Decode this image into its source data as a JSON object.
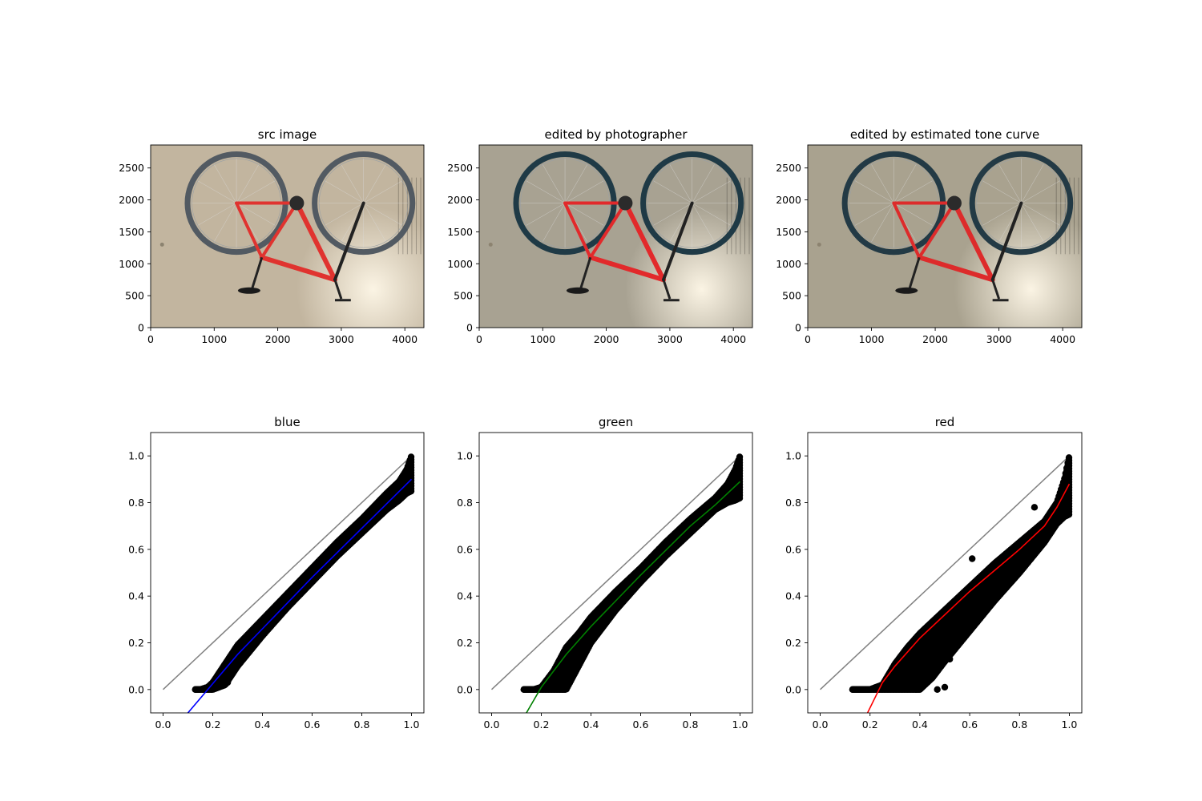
{
  "chart_data": [
    {
      "type": "image",
      "title": "src image",
      "xlim": [
        0,
        4300
      ],
      "ylim": [
        2860,
        0
      ],
      "xticks": [
        0,
        1000,
        2000,
        3000,
        4000
      ],
      "yticks": [
        0,
        500,
        1000,
        1500,
        2000,
        2500
      ],
      "photo": {
        "tint": "src",
        "wall": "#c2b59f",
        "frame": "#e0332f",
        "tire": "#525a62",
        "floor": "#bdb6a5"
      }
    },
    {
      "type": "image",
      "title": "edited by photographer",
      "xlim": [
        0,
        4300
      ],
      "ylim": [
        2860,
        0
      ],
      "xticks": [
        0,
        1000,
        2000,
        3000,
        4000
      ],
      "yticks": [
        0,
        500,
        1000,
        1500,
        2000,
        2500
      ],
      "photo": {
        "tint": "photographer",
        "wall": "#a8a292",
        "frame": "#e2292b",
        "tire": "#1f3a46",
        "floor": "#b0ada3"
      }
    },
    {
      "type": "image",
      "title": "edited by estimated tone curve",
      "xlim": [
        0,
        4300
      ],
      "ylim": [
        2860,
        0
      ],
      "xticks": [
        0,
        1000,
        2000,
        3000,
        4000
      ],
      "yticks": [
        0,
        500,
        1000,
        1500,
        2000,
        2500
      ],
      "photo": {
        "tint": "estimated",
        "wall": "#a9a28f",
        "frame": "#dd2b2b",
        "tire": "#233a45",
        "floor": "#b3ad9f"
      }
    },
    {
      "type": "scatter",
      "title": "blue",
      "xlim": [
        -0.05,
        1.05
      ],
      "ylim": [
        -0.1,
        1.1
      ],
      "xticks": [
        0.0,
        0.2,
        0.4,
        0.6,
        0.8,
        1.0
      ],
      "yticks": [
        0.0,
        0.2,
        0.4,
        0.6,
        0.8,
        1.0
      ],
      "identity_color": "#808080",
      "curve_color": "#0000ff",
      "curve": {
        "x": [
          0.1,
          0.2,
          0.3,
          0.4,
          0.5,
          0.6,
          0.7,
          0.8,
          0.9,
          1.0
        ],
        "y": [
          -0.1,
          0.025,
          0.15,
          0.26,
          0.37,
          0.48,
          0.585,
          0.69,
          0.795,
          0.9
        ]
      },
      "scatter": {
        "band_x": [
          0.13,
          0.15,
          0.18,
          0.2,
          0.25,
          0.3,
          0.4,
          0.5,
          0.6,
          0.7,
          0.8,
          0.9,
          0.95,
          0.98,
          1.0
        ],
        "band_lo": [
          0.0,
          0.0,
          0.0,
          0.0,
          0.02,
          0.1,
          0.23,
          0.35,
          0.46,
          0.57,
          0.67,
          0.77,
          0.81,
          0.84,
          0.85
        ],
        "band_hi": [
          0.0,
          0.0,
          0.01,
          0.03,
          0.11,
          0.19,
          0.3,
          0.41,
          0.52,
          0.63,
          0.73,
          0.84,
          0.89,
          0.94,
          1.0
        ],
        "outliers": [
          [
            0.24,
            0.02
          ],
          [
            0.26,
            0.03
          ]
        ]
      }
    },
    {
      "type": "scatter",
      "title": "green",
      "xlim": [
        -0.05,
        1.05
      ],
      "ylim": [
        -0.1,
        1.1
      ],
      "xticks": [
        0.0,
        0.2,
        0.4,
        0.6,
        0.8,
        1.0
      ],
      "yticks": [
        0.0,
        0.2,
        0.4,
        0.6,
        0.8,
        1.0
      ],
      "identity_color": "#808080",
      "curve_color": "#008000",
      "curve": {
        "x": [
          0.14,
          0.2,
          0.3,
          0.4,
          0.5,
          0.6,
          0.7,
          0.8,
          0.9,
          1.0
        ],
        "y": [
          -0.1,
          0.01,
          0.15,
          0.27,
          0.38,
          0.49,
          0.595,
          0.7,
          0.79,
          0.89
        ]
      },
      "scatter": {
        "band_x": [
          0.13,
          0.17,
          0.2,
          0.25,
          0.3,
          0.35,
          0.4,
          0.5,
          0.6,
          0.7,
          0.8,
          0.9,
          0.95,
          0.98,
          1.0
        ],
        "band_lo": [
          0.0,
          0.0,
          0.0,
          0.0,
          0.0,
          0.1,
          0.2,
          0.34,
          0.46,
          0.57,
          0.67,
          0.77,
          0.8,
          0.81,
          0.82
        ],
        "band_hi": [
          0.0,
          0.0,
          0.01,
          0.08,
          0.18,
          0.24,
          0.31,
          0.42,
          0.52,
          0.63,
          0.73,
          0.82,
          0.88,
          0.94,
          1.0
        ],
        "outliers": [
          [
            0.92,
            0.84
          ],
          [
            0.87,
            0.78
          ],
          [
            0.83,
            0.74
          ]
        ]
      }
    },
    {
      "type": "scatter",
      "title": "red",
      "xlim": [
        -0.05,
        1.05
      ],
      "ylim": [
        -0.1,
        1.1
      ],
      "xticks": [
        0.0,
        0.2,
        0.4,
        0.6,
        0.8,
        1.0
      ],
      "yticks": [
        0.0,
        0.2,
        0.4,
        0.6,
        0.8,
        1.0
      ],
      "identity_color": "#808080",
      "curve_color": "#ff0000",
      "curve": {
        "x": [
          0.19,
          0.25,
          0.3,
          0.4,
          0.5,
          0.6,
          0.7,
          0.8,
          0.9,
          0.95,
          1.0
        ],
        "y": [
          -0.1,
          0.03,
          0.1,
          0.22,
          0.32,
          0.42,
          0.51,
          0.6,
          0.7,
          0.78,
          0.88
        ]
      },
      "scatter": {
        "band_x": [
          0.13,
          0.2,
          0.25,
          0.3,
          0.35,
          0.4,
          0.45,
          0.5,
          0.6,
          0.7,
          0.8,
          0.9,
          0.95,
          0.98,
          1.0
        ],
        "band_lo": [
          0.0,
          0.0,
          0.0,
          0.0,
          0.0,
          0.0,
          0.05,
          0.12,
          0.25,
          0.38,
          0.5,
          0.63,
          0.71,
          0.74,
          0.75
        ],
        "band_hi": [
          0.0,
          0.0,
          0.02,
          0.11,
          0.18,
          0.24,
          0.29,
          0.34,
          0.44,
          0.54,
          0.63,
          0.72,
          0.8,
          0.9,
          1.0
        ],
        "outliers": [
          [
            0.61,
            0.56
          ],
          [
            0.86,
            0.78
          ],
          [
            0.73,
            0.43
          ],
          [
            0.5,
            0.01
          ],
          [
            0.47,
            0.0
          ],
          [
            0.37,
            0.02
          ],
          [
            0.52,
            0.13
          ]
        ]
      }
    }
  ]
}
